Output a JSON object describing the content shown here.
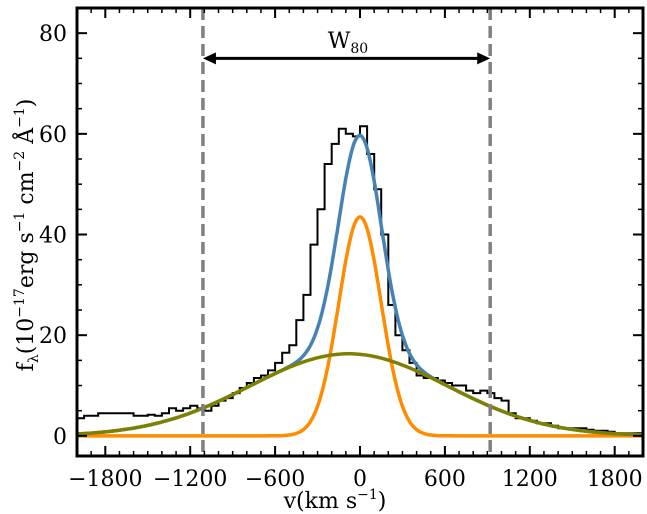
{
  "chart_data": {
    "type": "line",
    "title": "",
    "xlabel": "v(km s",
    "xlabel_sup": "−1",
    "xlabel_tail": ")",
    "ylabel": "f",
    "ylabel_sub": "λ",
    "ylabel_mid": "(10",
    "ylabel_sup": "−17",
    "ylabel_rest": "erg s",
    "ylabel_sup2": "−1",
    "ylabel_rest2": " cm",
    "ylabel_sup3": "−2",
    "ylabel_rest3": " Å",
    "ylabel_sup4": "−1",
    "ylabel_tail": ")",
    "xlim": [
      -2000,
      2000
    ],
    "ylim": [
      -4,
      85
    ],
    "xticks": [
      -1800,
      -1200,
      -600,
      0,
      600,
      1200,
      1800
    ],
    "xtick_labels": [
      "−1800",
      "−1200",
      "−600",
      "0",
      "600",
      "1200",
      "1800"
    ],
    "yticks": [
      0,
      20,
      40,
      60,
      80
    ],
    "ytick_labels": [
      "0",
      "20",
      "40",
      "60",
      "80"
    ],
    "grid": false,
    "annotation": {
      "label": "W",
      "label_sub": "80",
      "x_start": -1110,
      "x_end": 920,
      "y": 75
    },
    "vlines": [
      {
        "x": -1110,
        "color": "#808080",
        "style": "dashed"
      },
      {
        "x": 920,
        "color": "#808080",
        "style": "dashed"
      }
    ],
    "series": [
      {
        "kind": "step",
        "color": "#000000",
        "x": [
          -2000,
          -1950,
          -1900,
          -1850,
          -1800,
          -1750,
          -1700,
          -1650,
          -1600,
          -1550,
          -1500,
          -1450,
          -1400,
          -1350,
          -1300,
          -1250,
          -1200,
          -1150,
          -1100,
          -1050,
          -1000,
          -950,
          -900,
          -850,
          -800,
          -750,
          -700,
          -650,
          -600,
          -550,
          -500,
          -450,
          -400,
          -350,
          -300,
          -250,
          -200,
          -150,
          -100,
          -50,
          0,
          50,
          100,
          150,
          200,
          250,
          300,
          350,
          400,
          450,
          500,
          550,
          600,
          650,
          700,
          750,
          800,
          850,
          900,
          950,
          1000,
          1050,
          1100,
          1150,
          1200,
          1250,
          1300,
          1350,
          1400,
          1450,
          1500,
          1550,
          1600,
          1650,
          1700,
          1750,
          1800,
          1850,
          1900,
          1950
        ],
        "y": [
          3.5,
          4,
          4,
          4.5,
          4.5,
          4.5,
          4.5,
          4.5,
          4.0,
          4.0,
          4.2,
          4.0,
          4.5,
          5.5,
          5.0,
          5.5,
          6.0,
          5.5,
          5.0,
          6.0,
          7.0,
          7.5,
          8.5,
          9.5,
          10.5,
          11.5,
          12.0,
          13.0,
          14.5,
          16.5,
          18.0,
          23.0,
          28.0,
          38.0,
          45.0,
          54.0,
          58.0,
          61.0,
          60.0,
          59.5,
          61.5,
          56.0,
          49.0,
          40.0,
          26.0,
          20.0,
          17.0,
          14.5,
          12.0,
          11.5,
          11.5,
          11.0,
          10.5,
          10.0,
          10.0,
          9.0,
          8.5,
          9.0,
          8.5,
          7.5,
          7.0,
          4.5,
          3.5,
          3.5,
          3.0,
          2.5,
          2.5,
          2.0,
          1.5,
          1.5,
          1.5,
          1.5,
          1.2,
          1.0,
          1.0,
          0.8,
          0.5,
          0.5,
          0.5,
          0.5
        ]
      },
      {
        "kind": "line",
        "color": "#4682B4",
        "formula": "total",
        "components": [
          {
            "amp": 43.5,
            "mu": 0,
            "sigma": 150
          },
          {
            "amp": 16.3,
            "mu": -80,
            "sigma": 700
          }
        ]
      },
      {
        "kind": "line",
        "color": "#FF8C00",
        "formula": "gaussian",
        "amp": 43.5,
        "mu": 0,
        "sigma": 150
      },
      {
        "kind": "line",
        "color": "#808000",
        "formula": "gaussian",
        "amp": 16.3,
        "mu": -80,
        "sigma": 700
      }
    ]
  }
}
